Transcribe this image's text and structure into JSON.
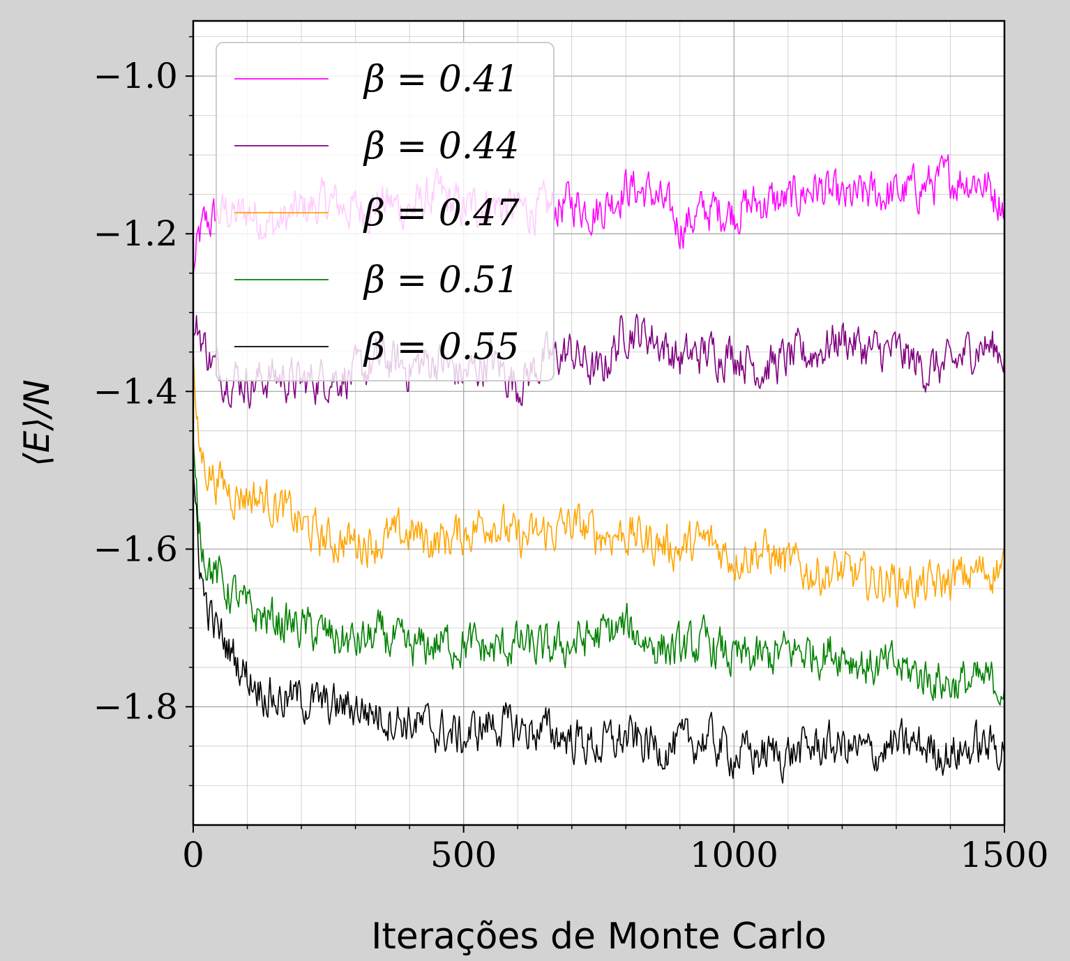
{
  "chart_data": {
    "type": "line",
    "title": "",
    "xlabel": "Iterações de Monte Carlo",
    "ylabel": "⟨E⟩/N",
    "xlim": [
      0,
      1500
    ],
    "ylim": [
      -1.95,
      -0.93
    ],
    "xticks": [
      0,
      500,
      1000,
      1500
    ],
    "xtick_labels": [
      "0",
      "500",
      "1000",
      "1500"
    ],
    "yticks": [
      -1.0,
      -1.2,
      -1.4,
      -1.6,
      -1.8
    ],
    "ytick_labels": [
      "−1.0",
      "−1.2",
      "−1.4",
      "−1.6",
      "−1.8"
    ],
    "grid": true,
    "minor_grid": true,
    "legend_position": "top-left",
    "series": [
      {
        "name": "β = 0.41",
        "color": "#ff00ff",
        "x": [
          0,
          10,
          20,
          40,
          60,
          80,
          100,
          150,
          200,
          250,
          300,
          350,
          400,
          450,
          500,
          550,
          600,
          650,
          700,
          750,
          800,
          850,
          900,
          950,
          1000,
          1050,
          1100,
          1150,
          1200,
          1250,
          1300,
          1350,
          1400,
          1450,
          1500
        ],
        "y": [
          -1.25,
          -1.21,
          -1.19,
          -1.18,
          -1.17,
          -1.18,
          -1.17,
          -1.19,
          -1.17,
          -1.16,
          -1.17,
          -1.16,
          -1.17,
          -1.15,
          -1.17,
          -1.16,
          -1.17,
          -1.17,
          -1.16,
          -1.17,
          -1.14,
          -1.15,
          -1.19,
          -1.17,
          -1.17,
          -1.16,
          -1.16,
          -1.14,
          -1.16,
          -1.15,
          -1.15,
          -1.14,
          -1.13,
          -1.13,
          -1.16
        ]
      },
      {
        "name": "β = 0.44",
        "color": "#800080",
        "x": [
          0,
          10,
          20,
          40,
          60,
          80,
          100,
          150,
          200,
          250,
          300,
          350,
          400,
          450,
          500,
          550,
          600,
          650,
          700,
          750,
          800,
          850,
          900,
          950,
          1000,
          1050,
          1100,
          1150,
          1200,
          1250,
          1300,
          1350,
          1400,
          1450,
          1500
        ],
        "y": [
          -1.33,
          -1.32,
          -1.34,
          -1.37,
          -1.38,
          -1.38,
          -1.39,
          -1.38,
          -1.39,
          -1.38,
          -1.38,
          -1.36,
          -1.37,
          -1.36,
          -1.38,
          -1.36,
          -1.39,
          -1.36,
          -1.35,
          -1.38,
          -1.32,
          -1.33,
          -1.36,
          -1.35,
          -1.35,
          -1.37,
          -1.36,
          -1.35,
          -1.33,
          -1.35,
          -1.35,
          -1.37,
          -1.37,
          -1.34,
          -1.35
        ]
      },
      {
        "name": "β = 0.47",
        "color": "#ffa500",
        "x": [
          0,
          5,
          10,
          20,
          40,
          60,
          80,
          100,
          150,
          200,
          250,
          300,
          350,
          400,
          450,
          500,
          550,
          600,
          650,
          700,
          750,
          800,
          850,
          900,
          950,
          1000,
          1050,
          1100,
          1150,
          1200,
          1250,
          1300,
          1350,
          1400,
          1450,
          1500
        ],
        "y": [
          -1.35,
          -1.43,
          -1.47,
          -1.49,
          -1.51,
          -1.52,
          -1.53,
          -1.53,
          -1.54,
          -1.57,
          -1.59,
          -1.59,
          -1.59,
          -1.58,
          -1.59,
          -1.58,
          -1.56,
          -1.59,
          -1.58,
          -1.57,
          -1.58,
          -1.58,
          -1.59,
          -1.6,
          -1.59,
          -1.61,
          -1.6,
          -1.62,
          -1.63,
          -1.63,
          -1.64,
          -1.64,
          -1.65,
          -1.64,
          -1.63,
          -1.62
        ]
      },
      {
        "name": "β = 0.51",
        "color": "#008000",
        "x": [
          0,
          5,
          10,
          20,
          30,
          40,
          60,
          80,
          100,
          150,
          200,
          250,
          300,
          350,
          400,
          450,
          500,
          550,
          600,
          650,
          700,
          750,
          800,
          850,
          900,
          950,
          1000,
          1050,
          1100,
          1150,
          1200,
          1250,
          1300,
          1350,
          1400,
          1450,
          1500
        ],
        "y": [
          -1.46,
          -1.52,
          -1.56,
          -1.6,
          -1.62,
          -1.63,
          -1.65,
          -1.66,
          -1.68,
          -1.69,
          -1.7,
          -1.71,
          -1.72,
          -1.71,
          -1.73,
          -1.72,
          -1.72,
          -1.73,
          -1.72,
          -1.73,
          -1.72,
          -1.71,
          -1.7,
          -1.72,
          -1.73,
          -1.72,
          -1.74,
          -1.74,
          -1.73,
          -1.73,
          -1.73,
          -1.75,
          -1.75,
          -1.76,
          -1.77,
          -1.77,
          -1.77
        ]
      },
      {
        "name": "β = 0.55",
        "color": "#000000",
        "x": [
          0,
          5,
          10,
          20,
          30,
          40,
          60,
          80,
          100,
          150,
          200,
          250,
          300,
          350,
          400,
          450,
          500,
          550,
          600,
          650,
          700,
          750,
          800,
          850,
          900,
          950,
          1000,
          1050,
          1100,
          1150,
          1200,
          1250,
          1300,
          1350,
          1400,
          1450,
          1500
        ],
        "y": [
          -1.5,
          -1.55,
          -1.6,
          -1.66,
          -1.68,
          -1.7,
          -1.72,
          -1.74,
          -1.76,
          -1.79,
          -1.79,
          -1.8,
          -1.8,
          -1.81,
          -1.82,
          -1.83,
          -1.84,
          -1.82,
          -1.83,
          -1.83,
          -1.84,
          -1.85,
          -1.84,
          -1.85,
          -1.85,
          -1.84,
          -1.86,
          -1.86,
          -1.86,
          -1.85,
          -1.85,
          -1.86,
          -1.85,
          -1.85,
          -1.86,
          -1.85,
          -1.85
        ]
      }
    ]
  }
}
